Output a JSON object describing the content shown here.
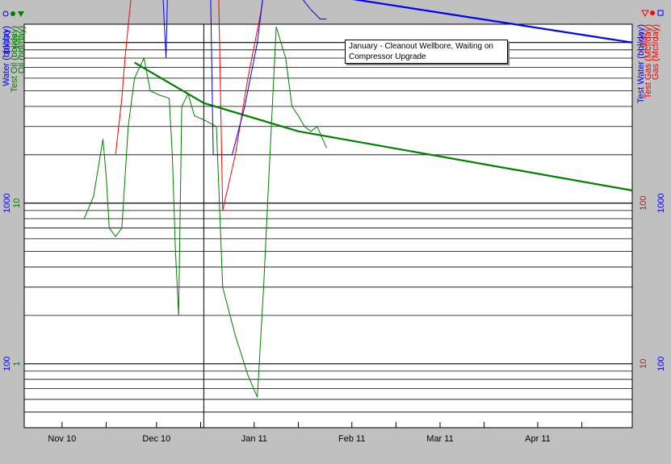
{
  "chart_data": {
    "type": "line",
    "xaxis": {
      "tick_labels": [
        "Nov 10",
        "Dec 10",
        "Jan 11",
        "Feb 11",
        "Mar 11",
        "Apr 11"
      ],
      "range": [
        "2010-10-20",
        "2011-05-01"
      ],
      "ticks": [
        "2010-11-01",
        "2010-11-15",
        "2010-12-01",
        "2010-12-15",
        "2011-01-01",
        "2011-01-15",
        "2011-02-01",
        "2011-02-15",
        "2011-03-01",
        "2011-03-15",
        "2011-04-01",
        "2011-04-15"
      ],
      "vline_date": "2010-12-16"
    },
    "yaxis_scale": "log",
    "y_left_inner": {
      "labels": [
        "Test Oil (bbl/day)",
        "Oil (bbl/day)"
      ],
      "tick_labels": [
        "100",
        "10",
        "1"
      ],
      "range": [
        0.4,
        130
      ]
    },
    "y_left_outer": {
      "labels": [
        "Water (bbl/day)"
      ],
      "tick_labels": [
        "10000",
        "1000",
        "100"
      ],
      "range": [
        40,
        13000
      ]
    },
    "y_right_inner": {
      "labels": [
        "Test Gas (Mcf/day)",
        "Gas (Mcf/day)"
      ],
      "tick_labels": [
        "1000",
        "100",
        "10"
      ],
      "range": [
        4,
        1300
      ]
    },
    "y_right_outer": {
      "labels": [
        "Test Water (bbl/day)"
      ],
      "tick_labels": [
        "1000",
        "100"
      ],
      "range": [
        40,
        13000
      ]
    },
    "annotation": [
      "January - Cleanout Wellbore, Waiting on",
      "Compressor Upgrade"
    ],
    "colors": {
      "oil": "#008000",
      "gas": "#ff0000",
      "water": "#0000ff",
      "grid": "#000000",
      "background": "#ffffff"
    },
    "series": [
      {
        "key": "oil",
        "color": "#008000",
        "points": [
          [
            "2010-11-08",
            8
          ],
          [
            "2010-11-11",
            11
          ],
          [
            "2010-11-14",
            25
          ],
          [
            "2010-11-15",
            15
          ],
          [
            "2010-11-16",
            7
          ],
          [
            "2010-11-18",
            6.2
          ],
          [
            "2010-11-20",
            7
          ],
          [
            "2010-11-22",
            30
          ],
          [
            "2010-11-24",
            60
          ],
          [
            "2010-11-27",
            80
          ],
          [
            "2010-11-29",
            50
          ],
          [
            "2010-12-02",
            47
          ],
          [
            "2010-12-05",
            45
          ],
          [
            "2010-12-06",
            20
          ],
          [
            "2010-12-07",
            5
          ],
          [
            "2010-12-08",
            2
          ],
          [
            "2010-12-09",
            40
          ],
          [
            "2010-12-11",
            48
          ],
          [
            "2010-12-13",
            35
          ],
          [
            "2010-12-16",
            33
          ],
          [
            "2010-12-20",
            30
          ],
          [
            "2010-12-22",
            3
          ],
          [
            "2010-12-26",
            1.5
          ],
          [
            "2010-12-30",
            0.85
          ],
          [
            "2011-01-02",
            0.62
          ],
          [
            "2011-01-04",
            3
          ],
          [
            "2011-01-06",
            20
          ],
          [
            "2011-01-08",
            125
          ],
          [
            "2011-01-11",
            80
          ],
          [
            "2011-01-13",
            40
          ],
          [
            "2011-01-15",
            35
          ],
          [
            "2011-01-17",
            30
          ],
          [
            "2011-01-19",
            28
          ],
          [
            "2011-01-21",
            30
          ],
          [
            "2011-01-24",
            22
          ]
        ]
      },
      {
        "key": "oil_forecast",
        "color": "#008000",
        "points": [
          [
            "2010-11-24",
            75
          ],
          [
            "2010-12-16",
            42
          ],
          [
            "2011-01-15",
            28
          ],
          [
            "2011-05-01",
            12
          ]
        ]
      },
      {
        "key": "gas",
        "color": "#ff0000",
        "points": [
          [
            "2010-11-18",
            20
          ],
          [
            "2010-11-20",
            45
          ],
          [
            "2010-11-21",
            80
          ],
          [
            "2010-11-23",
            200
          ],
          [
            "2010-11-25",
            400
          ],
          [
            "2010-11-27",
            800
          ],
          [
            "2010-11-29",
            700
          ],
          [
            "2010-12-02",
            750
          ],
          [
            "2010-12-05",
            850
          ],
          [
            "2010-12-08",
            900
          ],
          [
            "2010-12-11",
            1150
          ],
          [
            "2010-12-14",
            1050
          ],
          [
            "2010-12-17",
            1200
          ],
          [
            "2010-12-18",
            1150
          ],
          [
            "2010-12-19",
            1100
          ],
          [
            "2010-12-20",
            1100
          ],
          [
            "2010-12-22",
            9
          ],
          [
            "2010-12-26",
            20
          ],
          [
            "2010-12-30",
            60
          ],
          [
            "2011-01-03",
            150
          ],
          [
            "2011-01-06",
            350
          ],
          [
            "2011-01-07",
            1100
          ],
          [
            "2011-01-09",
            1300
          ],
          [
            "2011-01-11",
            1200
          ],
          [
            "2011-01-14",
            1300
          ],
          [
            "2011-01-16",
            1000
          ],
          [
            "2011-01-18",
            1200
          ],
          [
            "2011-01-20",
            1100
          ],
          [
            "2011-01-22",
            900
          ],
          [
            "2011-01-24",
            850
          ]
        ]
      },
      {
        "key": "gas_forecast",
        "color": "#ff0000",
        "points": [
          [
            "2010-11-27",
            780
          ],
          [
            "2010-12-16",
            1380
          ],
          [
            "2011-01-15",
            1300
          ],
          [
            "2011-05-01",
            1050
          ]
        ]
      },
      {
        "key": "water",
        "color": "#0000ff",
        "points": [
          [
            "2010-11-07",
            1500
          ],
          [
            "2010-11-09",
            1350
          ],
          [
            "2010-11-11",
            1200
          ],
          [
            "2010-11-13",
            1100
          ],
          [
            "2010-11-15",
            1000
          ],
          [
            "2010-11-18",
            900
          ],
          [
            "2010-11-20",
            700
          ],
          [
            "2010-11-22",
            850
          ],
          [
            "2010-11-24",
            750
          ],
          [
            "2010-11-26",
            700
          ],
          [
            "2010-11-28",
            600
          ],
          [
            "2010-12-01",
            450
          ],
          [
            "2010-12-03",
            200
          ],
          [
            "2010-12-04",
            80
          ],
          [
            "2010-12-05",
            550
          ],
          [
            "2010-12-07",
            380
          ],
          [
            "2010-12-09",
            320
          ],
          [
            "2010-12-11",
            350
          ],
          [
            "2010-12-14",
            330
          ],
          [
            "2010-12-16",
            320
          ],
          [
            "2010-12-18",
            300
          ],
          [
            "2010-12-19",
            20
          ],
          [
            "2010-12-21",
            20
          ],
          [
            "2010-12-25",
            20
          ],
          [
            "2010-12-29",
            40
          ],
          [
            "2011-01-02",
            100
          ],
          [
            "2011-01-05",
            300
          ],
          [
            "2011-01-07",
            600
          ],
          [
            "2011-01-10",
            400
          ],
          [
            "2011-01-13",
            250
          ],
          [
            "2011-01-16",
            190
          ],
          [
            "2011-01-19",
            160
          ],
          [
            "2011-01-22",
            140
          ],
          [
            "2011-01-24",
            140
          ]
        ]
      },
      {
        "key": "water_forecast",
        "color": "#0000ff",
        "points": [
          [
            "2010-12-03",
            360
          ],
          [
            "2011-01-15",
            210
          ],
          [
            "2011-05-01",
            100
          ]
        ]
      }
    ]
  }
}
